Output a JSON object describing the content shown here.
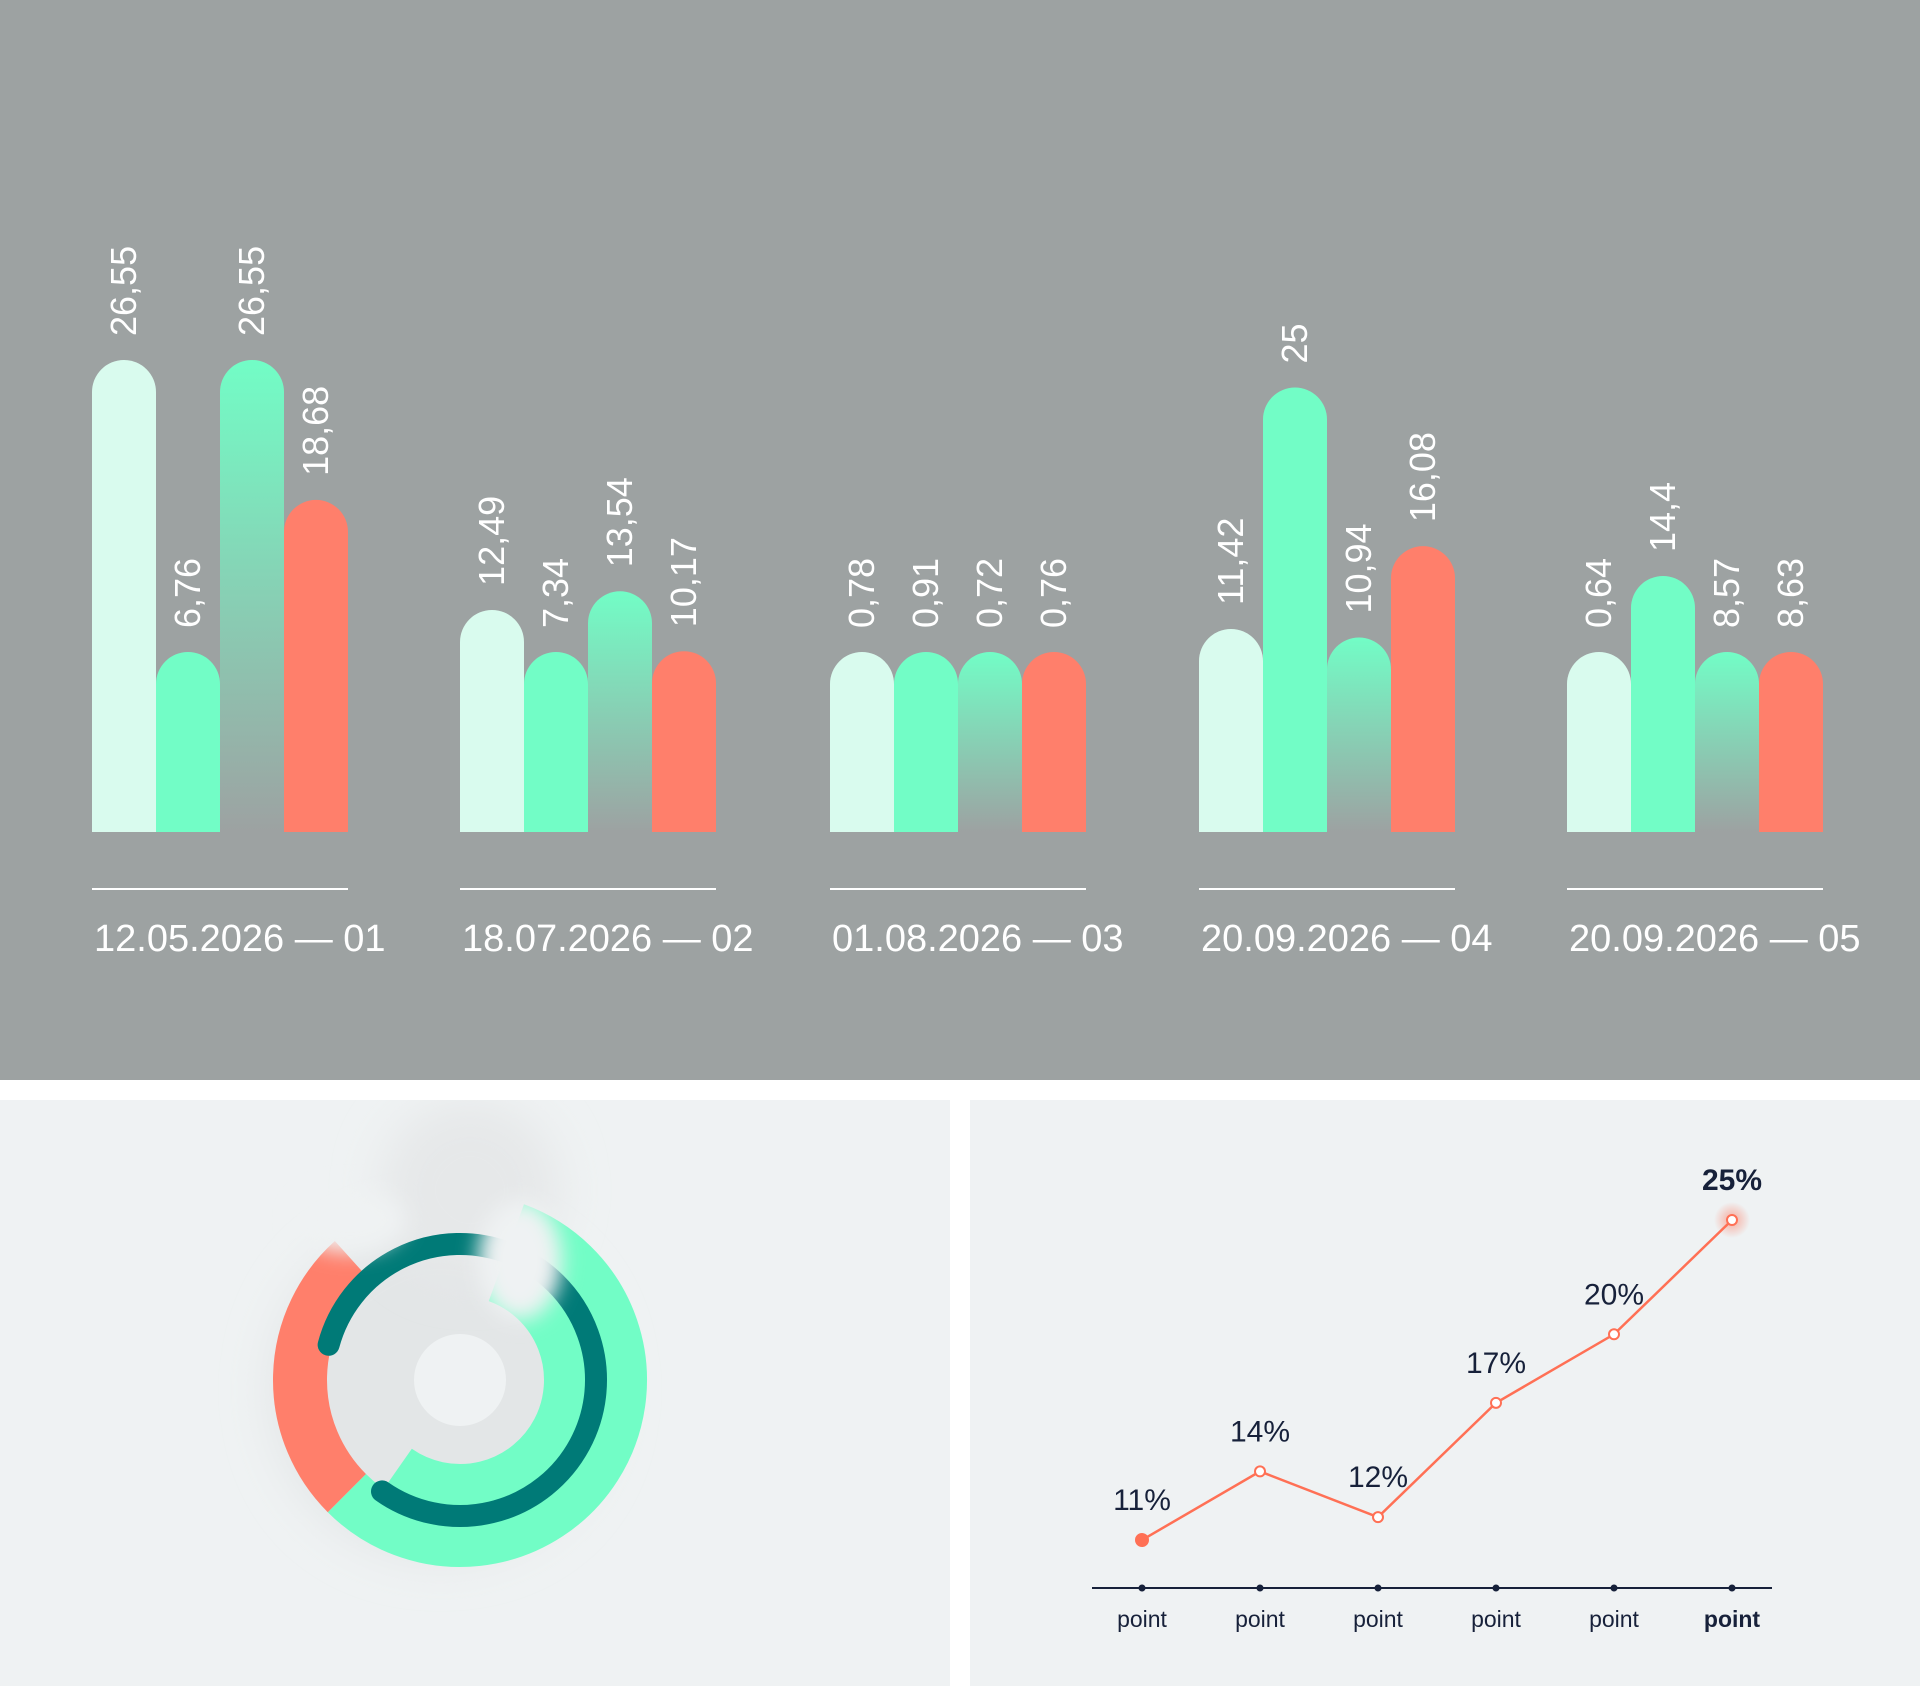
{
  "colors": {
    "panel_bg_top": "#9da2a2",
    "panel_bg_bottom": "#eff2f3",
    "mint_light": "#d9fbee",
    "mint": "#72fdc6",
    "coral": "#ff7f6b",
    "teal_dark": "#007a77",
    "line": "#ff7055",
    "ink": "#17213a",
    "white": "#ffffff"
  },
  "chart_data": [
    {
      "type": "bar",
      "categories": [
        "12.05.2026 — 01",
        "18.07.2026 — 02",
        "01.08.2026 — 03",
        "20.09.2026 — 04",
        "20.09.2026 — 05"
      ],
      "series": [
        {
          "values": [
            26.55,
            12.49,
            0.78,
            11.42,
            0.64
          ],
          "labels": [
            "26,55",
            "12,49",
            "0,78",
            "11,42",
            "0,64"
          ],
          "color": "#d9fbee"
        },
        {
          "values": [
            6.76,
            7.34,
            0.91,
            25,
            14.4
          ],
          "labels": [
            "6,76",
            "7,34",
            "0,91",
            "25",
            "14,4"
          ],
          "color": "#72fdc6"
        },
        {
          "values": [
            26.55,
            13.54,
            0.72,
            10.94,
            8.57
          ],
          "labels": [
            "26,55",
            "13,54",
            "0,72",
            "10,94",
            "8,57"
          ],
          "color": "#72fdc6",
          "fill": "gradient-fade"
        },
        {
          "values": [
            18.68,
            10.17,
            0.76,
            16.08,
            8.63
          ],
          "labels": [
            "18,68",
            "10,17",
            "0,76",
            "16,08",
            "8,63"
          ],
          "color": "#ff7f6b"
        }
      ],
      "value_labels": "rotated-vertical",
      "grid": false
    },
    {
      "type": "pie",
      "style": "donut-rings",
      "segments": [
        {
          "ring": "outer",
          "color": "#72fdc6",
          "start_deg": 20,
          "end_deg": 225
        },
        {
          "ring": "outer",
          "color": "#ff7f6b",
          "start_deg": 225,
          "end_deg": 318
        },
        {
          "ring": "inner",
          "color": "#72fdc6",
          "start_deg": 20,
          "end_deg": 215
        },
        {
          "ring": "track",
          "color": "#007a77",
          "start_deg": 285,
          "end_deg": 215
        }
      ]
    },
    {
      "type": "line",
      "categories": [
        "point",
        "point",
        "point",
        "point",
        "point",
        "point"
      ],
      "values": [
        11,
        14,
        12,
        17,
        20,
        25
      ],
      "labels": [
        "11%",
        "14%",
        "12%",
        "17%",
        "20%",
        "25%"
      ],
      "ylim": [
        0,
        30
      ],
      "highlight_last": true,
      "grid": false
    }
  ]
}
